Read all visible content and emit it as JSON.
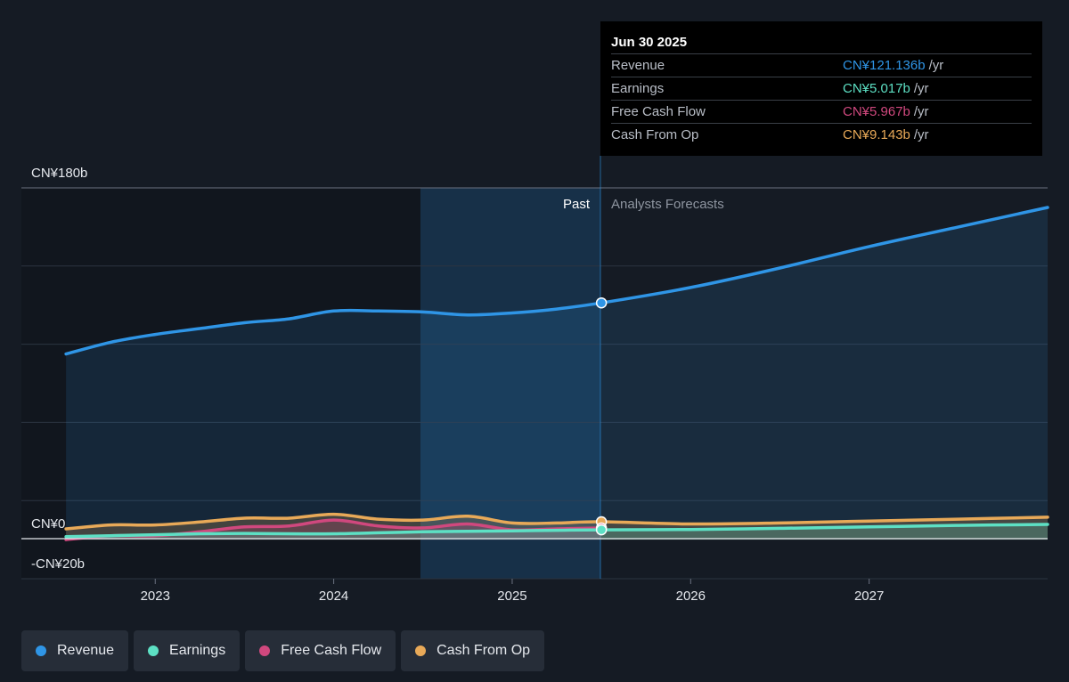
{
  "colors": {
    "revenue": "#2f95e6",
    "earnings": "#5de0c4",
    "free_cash_flow": "#d0487e",
    "cash_from_op": "#e8a958",
    "background": "#151b24"
  },
  "tooltip": {
    "date": "Jun 30 2025",
    "rows": [
      {
        "name": "Revenue",
        "value": "CN¥121.136b",
        "unit": "/yr",
        "color": "#2f95e6"
      },
      {
        "name": "Earnings",
        "value": "CN¥5.017b",
        "unit": "/yr",
        "color": "#5de0c4"
      },
      {
        "name": "Free Cash Flow",
        "value": "CN¥5.967b",
        "unit": "/yr",
        "color": "#d0487e"
      },
      {
        "name": "Cash From Op",
        "value": "CN¥9.143b",
        "unit": "/yr",
        "color": "#e8a958"
      }
    ]
  },
  "legend": [
    {
      "label": "Revenue",
      "color": "#2f95e6",
      "icon": "dot-icon"
    },
    {
      "label": "Earnings",
      "color": "#5de0c4",
      "icon": "dot-icon"
    },
    {
      "label": "Free Cash Flow",
      "color": "#d0487e",
      "icon": "dot-icon"
    },
    {
      "label": "Cash From Op",
      "color": "#e8a958",
      "icon": "dot-icon"
    }
  ],
  "chart_data": {
    "type": "area",
    "title": "",
    "y_tick_labels": [
      "CN¥180b",
      "CN¥0",
      "-CN¥20b"
    ],
    "x_tick_labels": [
      "2023",
      "2024",
      "2025",
      "2026",
      "2027"
    ],
    "zones": {
      "past": "Past",
      "forecast": "Analysts Forecasts"
    },
    "ylim": [
      -20,
      180
    ],
    "xlim": [
      2022.25,
      2028.0
    ],
    "divider_x": 2025.5,
    "highlight_start_x": 2024.5,
    "grid": true,
    "legend_position": "bottom",
    "series": [
      {
        "name": "Revenue",
        "color": "#2f95e6",
        "points": [
          [
            2022.5,
            95
          ],
          [
            2022.75,
            101
          ],
          [
            2023.0,
            105
          ],
          [
            2023.25,
            108
          ],
          [
            2023.5,
            111
          ],
          [
            2023.75,
            113
          ],
          [
            2024.0,
            117
          ],
          [
            2024.25,
            117
          ],
          [
            2024.5,
            116.5
          ],
          [
            2024.75,
            115
          ],
          [
            2025.0,
            116
          ],
          [
            2025.25,
            118
          ],
          [
            2025.5,
            121.136
          ],
          [
            2026.0,
            129
          ],
          [
            2026.5,
            139
          ],
          [
            2027.0,
            150
          ],
          [
            2027.5,
            160
          ],
          [
            2028.0,
            170
          ]
        ]
      },
      {
        "name": "Earnings",
        "color": "#5de0c4",
        "points": [
          [
            2022.5,
            1.5
          ],
          [
            2022.75,
            2
          ],
          [
            2023.0,
            2.5
          ],
          [
            2023.25,
            3
          ],
          [
            2023.5,
            3.2
          ],
          [
            2023.75,
            3
          ],
          [
            2024.0,
            3
          ],
          [
            2024.25,
            3.5
          ],
          [
            2024.5,
            4
          ],
          [
            2024.75,
            4.3
          ],
          [
            2025.0,
            4.5
          ],
          [
            2025.25,
            4.8
          ],
          [
            2025.5,
            5.017
          ],
          [
            2026.0,
            5.2
          ],
          [
            2026.5,
            5.8
          ],
          [
            2027.0,
            6.5
          ],
          [
            2027.5,
            7.3
          ],
          [
            2028.0,
            7.8
          ]
        ]
      },
      {
        "name": "Free Cash Flow",
        "color": "#d0487e",
        "points": [
          [
            2022.5,
            0
          ],
          [
            2022.75,
            2
          ],
          [
            2023.0,
            2
          ],
          [
            2023.25,
            4
          ],
          [
            2023.5,
            6.5
          ],
          [
            2023.75,
            7
          ],
          [
            2024.0,
            10
          ],
          [
            2024.25,
            7
          ],
          [
            2024.5,
            6
          ],
          [
            2024.75,
            8
          ],
          [
            2025.0,
            5
          ],
          [
            2025.25,
            5.5
          ],
          [
            2025.5,
            5.967
          ]
        ]
      },
      {
        "name": "Cash From Op",
        "color": "#e8a958",
        "points": [
          [
            2022.5,
            5.5
          ],
          [
            2022.75,
            7.5
          ],
          [
            2023.0,
            7.5
          ],
          [
            2023.25,
            9
          ],
          [
            2023.5,
            11
          ],
          [
            2023.75,
            11
          ],
          [
            2024.0,
            13
          ],
          [
            2024.25,
            10.5
          ],
          [
            2024.5,
            10
          ],
          [
            2024.75,
            12
          ],
          [
            2025.0,
            8.5
          ],
          [
            2025.25,
            8.5
          ],
          [
            2025.5,
            9.143
          ],
          [
            2026.0,
            8
          ],
          [
            2026.5,
            8.5
          ],
          [
            2027.0,
            9.5
          ],
          [
            2027.5,
            10.5
          ],
          [
            2028.0,
            11.5
          ]
        ]
      }
    ]
  }
}
